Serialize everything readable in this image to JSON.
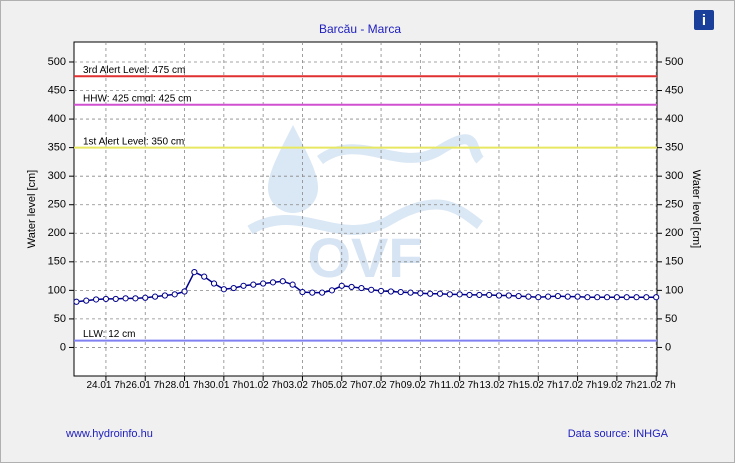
{
  "chart_data": {
    "type": "line",
    "title": "Barcău - Marca",
    "ylabel": "Water level [cm]",
    "y2label": "Water level [cm]",
    "watermark": "OVF",
    "footer_left": "www.hydroinfo.hu",
    "footer_right": "Data source: INHGA",
    "info_icon": "i",
    "xlim": [
      "22.01 16h",
      "21.02 8h"
    ],
    "xticks": [
      "24.01 7h",
      "26.01 7h",
      "28.01 7h",
      "30.01 7h",
      "01.02 7h",
      "03.02 7h",
      "05.02 7h",
      "07.02 7h",
      "09.02 7h",
      "11.02 7h",
      "13.02 7h",
      "15.02 7h",
      "17.02 7h",
      "19.02 7h",
      "21.02 7h"
    ],
    "ylim": [
      -50,
      535
    ],
    "yticks": [
      0,
      50,
      100,
      150,
      200,
      250,
      300,
      350,
      400,
      450,
      500
    ],
    "grid": true,
    "thresholds": [
      {
        "label": "3rd Alert Level: 475 cm",
        "value": 475,
        "color": "#e03030"
      },
      {
        "label": "HHW: 425 cmαl: 425 cm",
        "value": 425,
        "color": "#d050d0"
      },
      {
        "label": "1st Alert Level: 350 cm",
        "value": 350,
        "color": "#e8e860"
      },
      {
        "label": "LLW: 12 cm",
        "value": 12,
        "color": "#8080f0"
      }
    ],
    "series": [
      {
        "color": "#00008b",
        "x": [
          "22.01 19h",
          "23.01 7h",
          "23.01 19h",
          "24.01 7h",
          "24.01 19h",
          "25.01 7h",
          "25.01 19h",
          "26.01 7h",
          "26.01 19h",
          "27.01 7h",
          "27.01 19h",
          "28.01 7h",
          "28.01 19h",
          "29.01 7h",
          "29.01 19h",
          "30.01 7h",
          "30.01 19h",
          "31.01 7h",
          "31.01 19h",
          "01.02 7h",
          "01.02 19h",
          "02.02 7h",
          "02.02 19h",
          "03.02 7h",
          "03.02 19h",
          "04.02 7h",
          "04.02 19h",
          "05.02 7h",
          "05.02 19h",
          "06.02 7h",
          "06.02 19h",
          "07.02 7h",
          "07.02 19h",
          "08.02 7h",
          "08.02 19h",
          "09.02 7h",
          "09.02 19h",
          "10.02 7h",
          "10.02 19h",
          "11.02 7h",
          "11.02 19h",
          "12.02 7h",
          "12.02 19h",
          "13.02 7h",
          "13.02 19h",
          "14.02 7h",
          "14.02 19h",
          "15.02 7h",
          "15.02 19h",
          "16.02 7h",
          "16.02 19h",
          "17.02 7h",
          "17.02 19h",
          "18.02 7h",
          "18.02 19h",
          "19.02 7h",
          "19.02 19h",
          "20.02 7h",
          "20.02 19h",
          "21.02 7h"
        ],
        "values": [
          80,
          82,
          84,
          85,
          85,
          86,
          86,
          87,
          89,
          91,
          93,
          98,
          132,
          124,
          112,
          102,
          104,
          108,
          110,
          112,
          114,
          116,
          110,
          97,
          96,
          96,
          100,
          108,
          106,
          104,
          101,
          99,
          98,
          97,
          96,
          95,
          94,
          94,
          93,
          93,
          92,
          92,
          92,
          91,
          91,
          90,
          89,
          88,
          89,
          90,
          89,
          89,
          88,
          88,
          88,
          88,
          88,
          88,
          88,
          88
        ]
      }
    ]
  }
}
